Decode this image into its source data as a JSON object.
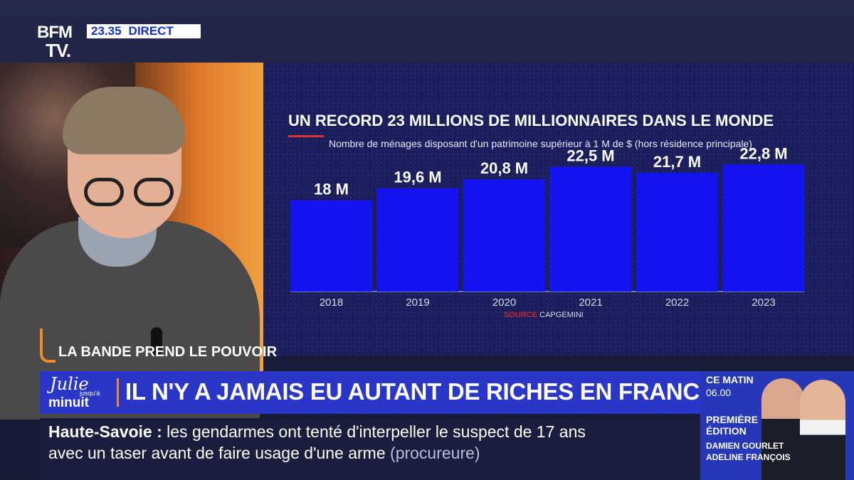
{
  "channel": {
    "logo_top": "BFM",
    "logo_bottom": "TV.",
    "time": "23.35",
    "status": "DIRECT"
  },
  "chart_data": {
    "type": "bar",
    "title": "UN RECORD 23 MILLIONS DE MILLIONNAIRES DANS LE MONDE",
    "subtitle": "Nombre de ménages disposant d'un patrimoine supérieur à 1 M de $ (hors résidence principale)",
    "categories": [
      "2018",
      "2019",
      "2020",
      "2021",
      "2022",
      "2023"
    ],
    "values": [
      18,
      19.6,
      20.8,
      22.5,
      21.7,
      22.8
    ],
    "value_labels": [
      "18 M",
      "19,6 M",
      "20,8 M",
      "22,5 M",
      "21,7 M",
      "22,8 M"
    ],
    "unit": "M",
    "bar_color": "#1414f0",
    "source_label": "SOURCE",
    "source_value": "CAPGEMINI"
  },
  "program_tag": "LA BANDE PREND LE POUVOIR",
  "show_logo": {
    "line1": "Julie",
    "line2": "jusqu'à",
    "line3": "minuit"
  },
  "headline": "IL N'Y A JAMAIS EU AUTANT DE RICHES EN FRANCE",
  "ticker": {
    "place": "Haute-Savoie :",
    "line1_text": "les gendarmes ont tenté d'interpeller le suspect de 17 ans",
    "line2_text": "avec un taser avant de faire usage d'une arme",
    "line2_source": "(procureure)"
  },
  "promo": {
    "label": "CE MATIN",
    "time": "06.00",
    "edition_line1": "PREMIÈRE",
    "edition_line2": "ÉDITION",
    "presenter1": "DAMIEN GOURLET",
    "presenter2": "ADELINE FRANÇOIS"
  },
  "colors": {
    "accent_blue": "#2a36c8",
    "accent_orange": "#f08a2a",
    "source_red": "#c02a3a"
  }
}
